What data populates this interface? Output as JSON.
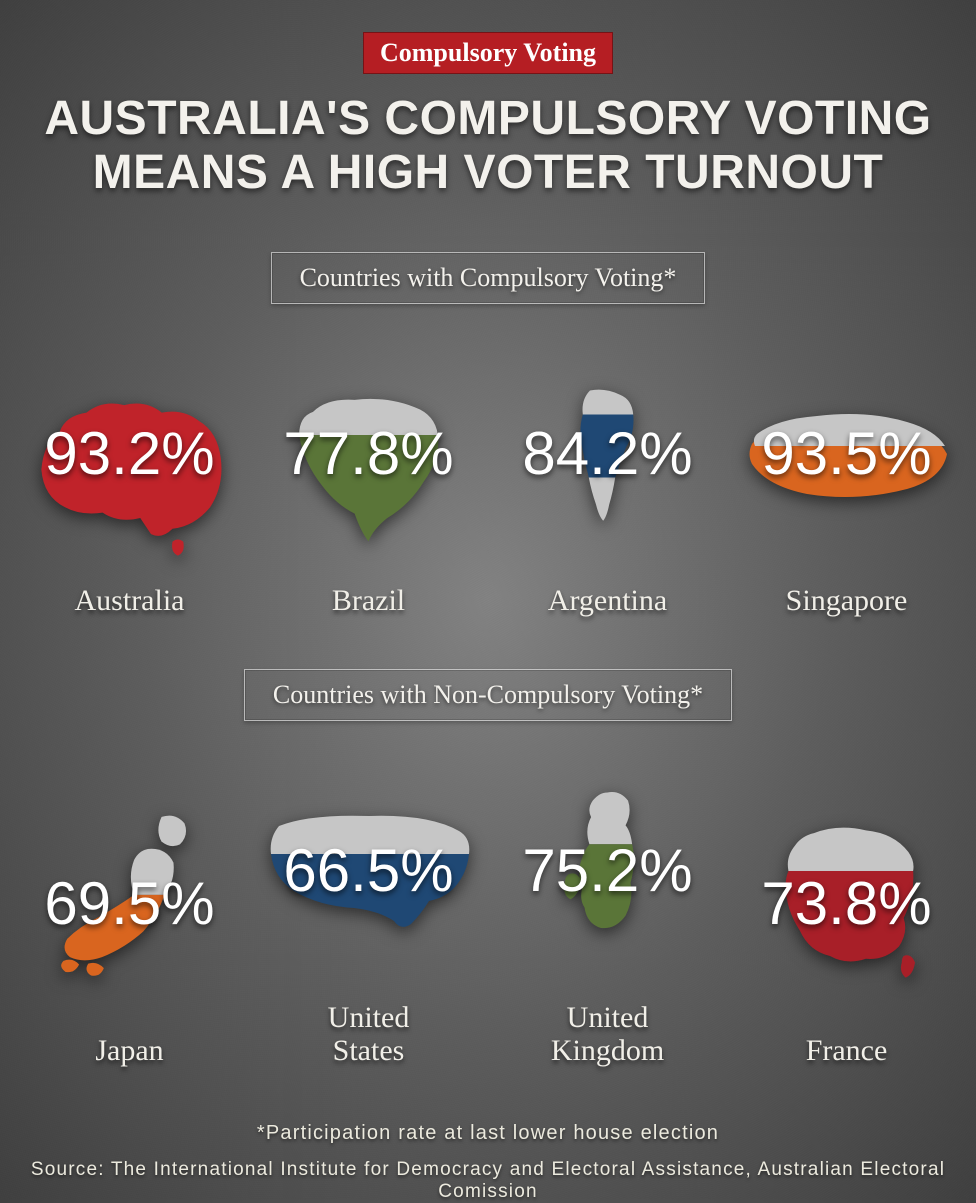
{
  "badge": "Compulsory Voting",
  "headline_line1": "AUSTRALIA'S COMPULSORY VOTING",
  "headline_line2": "MEANS A HIGH VOTER TURNOUT",
  "section1_label": "Countries with Compulsory Voting*",
  "section2_label": "Countries with Non-Compulsory Voting*",
  "colors": {
    "badge_bg": "#b51e23",
    "red": "#c0232a",
    "dark_red": "#a81f28",
    "green": "#5a7538",
    "blue": "#1f4874",
    "orange": "#d9651f",
    "light_gray": "#c6c6c6"
  },
  "compulsory": [
    {
      "name": "Australia",
      "pct": "93.2%"
    },
    {
      "name": "Brazil",
      "pct": "77.8%"
    },
    {
      "name": "Argentina",
      "pct": "84.2%"
    },
    {
      "name": "Singapore",
      "pct": "93.5%"
    }
  ],
  "noncompulsory": [
    {
      "name": "Japan",
      "pct": "69.5%"
    },
    {
      "name": "United\nStates",
      "pct": "66.5%"
    },
    {
      "name": "United\nKingdom",
      "pct": "75.2%"
    },
    {
      "name": "France",
      "pct": "73.8%"
    }
  ],
  "footnote": "*Participation rate at last lower house election",
  "source": "Source: The International Institute for Democracy and Electoral Assistance, Australian Electoral Comission"
}
